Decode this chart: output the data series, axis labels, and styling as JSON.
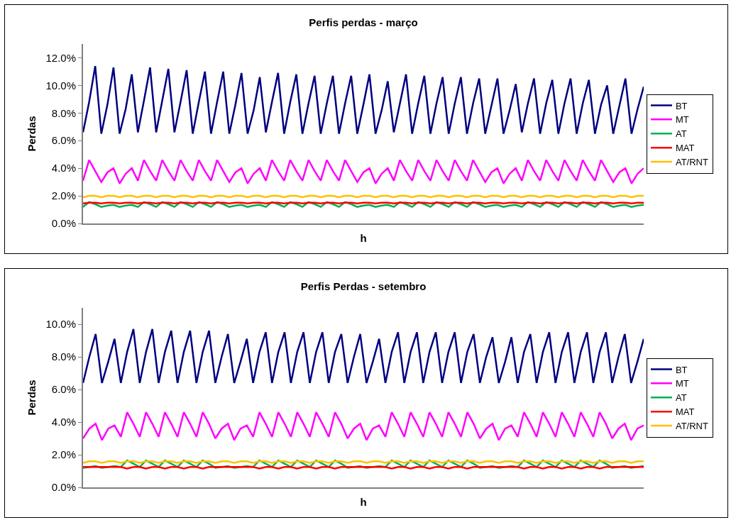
{
  "chart_data": [
    {
      "type": "line",
      "title": "Perfis perdas - março",
      "xlabel": "h",
      "ylabel": "Perdas",
      "legend": "right",
      "grid": false,
      "marker": "none",
      "line_style": "solid",
      "tick_labels": "y",
      "ylim": [
        0,
        13
      ],
      "yticks": [
        {
          "value": 0,
          "label": "0.0%"
        },
        {
          "value": 2,
          "label": "2.0%"
        },
        {
          "value": 4,
          "label": "4.0%"
        },
        {
          "value": 6,
          "label": "6.0%"
        },
        {
          "value": 8,
          "label": "8.0%"
        },
        {
          "value": 10,
          "label": "10.0%"
        },
        {
          "value": 12,
          "label": "12.0%"
        }
      ],
      "categories": [
        null,
        null,
        null,
        null,
        null,
        null,
        null,
        null,
        null,
        null,
        null,
        null,
        null,
        null,
        null,
        null,
        null,
        null,
        null,
        null,
        null,
        null,
        null,
        null,
        null,
        null,
        null,
        null,
        null,
        null,
        null,
        null,
        null,
        null,
        null,
        null,
        null,
        null,
        null,
        null,
        null,
        null,
        null,
        null,
        null,
        null,
        null,
        null,
        null,
        null,
        null,
        null,
        null,
        null,
        null,
        null,
        null,
        null,
        null,
        null,
        null,
        null,
        null,
        null,
        null,
        null,
        null,
        null,
        null,
        null,
        null,
        null,
        null,
        null,
        null,
        null,
        null,
        null,
        null,
        null,
        null,
        null,
        null,
        null,
        null,
        null,
        null,
        null,
        null,
        null,
        null,
        null,
        null
      ],
      "series": [
        {
          "name": "BT",
          "color": "#000080",
          "values": [
            6.6,
            8.8,
            11.4,
            6.5,
            8.6,
            11.3,
            6.5,
            8.3,
            10.8,
            6.6,
            8.9,
            11.3,
            6.6,
            8.9,
            11.2,
            6.6,
            8.8,
            11.1,
            6.5,
            8.8,
            11.0,
            6.5,
            8.8,
            11.0,
            6.5,
            8.6,
            10.9,
            6.5,
            8.2,
            10.6,
            6.6,
            8.8,
            10.9,
            6.5,
            8.8,
            10.8,
            6.5,
            8.7,
            10.7,
            6.5,
            8.7,
            10.7,
            6.5,
            8.7,
            10.7,
            6.5,
            8.6,
            10.8,
            6.5,
            8.2,
            10.3,
            6.6,
            8.7,
            10.8,
            6.5,
            8.7,
            10.7,
            6.5,
            8.7,
            10.6,
            6.5,
            8.7,
            10.6,
            6.5,
            8.7,
            10.5,
            6.5,
            8.5,
            10.5,
            6.5,
            8.2,
            10.1,
            6.6,
            8.7,
            10.5,
            6.5,
            8.7,
            10.4,
            6.5,
            8.7,
            10.5,
            6.5,
            8.7,
            10.4,
            6.5,
            8.6,
            10.0,
            6.5,
            8.5,
            10.5,
            6.5,
            8.3,
            9.9
          ]
        },
        {
          "name": "MT",
          "color": "#ff00ff",
          "values": [
            3.1,
            4.6,
            3.8,
            3.0,
            3.7,
            4.0,
            2.9,
            3.6,
            4.0,
            3.1,
            4.6,
            3.8,
            3.1,
            4.6,
            3.8,
            3.1,
            4.6,
            3.8,
            3.1,
            4.6,
            3.8,
            3.1,
            4.6,
            3.8,
            3.0,
            3.7,
            4.0,
            2.9,
            3.6,
            4.0,
            3.1,
            4.6,
            3.8,
            3.1,
            4.6,
            3.8,
            3.1,
            4.6,
            3.8,
            3.1,
            4.6,
            3.8,
            3.1,
            4.6,
            3.8,
            3.0,
            3.7,
            4.0,
            2.9,
            3.6,
            4.0,
            3.1,
            4.6,
            3.8,
            3.1,
            4.6,
            3.8,
            3.1,
            4.6,
            3.8,
            3.1,
            4.6,
            3.8,
            3.1,
            4.6,
            3.8,
            3.0,
            3.7,
            4.0,
            2.9,
            3.6,
            4.0,
            3.1,
            4.6,
            3.8,
            3.1,
            4.6,
            3.8,
            3.1,
            4.6,
            3.8,
            3.1,
            4.6,
            3.8,
            3.1,
            4.6,
            3.8,
            3.0,
            3.7,
            4.0,
            2.9,
            3.6,
            4.0
          ]
        },
        {
          "name": "AT",
          "color": "#00b050",
          "values": [
            1.2,
            1.55,
            1.4,
            1.2,
            1.3,
            1.35,
            1.2,
            1.3,
            1.35,
            1.2,
            1.55,
            1.4,
            1.2,
            1.55,
            1.4,
            1.2,
            1.55,
            1.4,
            1.2,
            1.55,
            1.4,
            1.2,
            1.55,
            1.4,
            1.2,
            1.3,
            1.35,
            1.2,
            1.3,
            1.35,
            1.2,
            1.55,
            1.4,
            1.2,
            1.55,
            1.4,
            1.2,
            1.55,
            1.4,
            1.2,
            1.55,
            1.4,
            1.2,
            1.55,
            1.4,
            1.2,
            1.3,
            1.35,
            1.2,
            1.3,
            1.35,
            1.2,
            1.55,
            1.4,
            1.2,
            1.55,
            1.4,
            1.2,
            1.55,
            1.4,
            1.2,
            1.55,
            1.4,
            1.2,
            1.55,
            1.4,
            1.2,
            1.3,
            1.35,
            1.2,
            1.3,
            1.35,
            1.2,
            1.55,
            1.4,
            1.2,
            1.55,
            1.4,
            1.2,
            1.55,
            1.4,
            1.2,
            1.55,
            1.4,
            1.2,
            1.55,
            1.4,
            1.2,
            1.3,
            1.35,
            1.2,
            1.3,
            1.35
          ]
        },
        {
          "name": "MAT",
          "color": "#ff0000",
          "values": [
            1.45,
            1.5,
            1.5,
            1.45,
            1.5,
            1.5,
            1.45,
            1.5,
            1.5,
            1.45,
            1.5,
            1.5,
            1.45,
            1.5,
            1.5,
            1.45,
            1.5,
            1.5,
            1.45,
            1.5,
            1.5,
            1.45,
            1.5,
            1.5,
            1.45,
            1.5,
            1.5,
            1.45,
            1.5,
            1.5,
            1.45,
            1.5,
            1.5,
            1.45,
            1.5,
            1.5,
            1.45,
            1.5,
            1.5,
            1.45,
            1.5,
            1.5,
            1.45,
            1.5,
            1.5,
            1.45,
            1.5,
            1.5,
            1.45,
            1.5,
            1.5,
            1.45,
            1.5,
            1.5,
            1.45,
            1.5,
            1.5,
            1.45,
            1.5,
            1.5,
            1.45,
            1.5,
            1.5,
            1.45,
            1.5,
            1.5,
            1.45,
            1.5,
            1.5,
            1.45,
            1.5,
            1.5,
            1.45,
            1.5,
            1.5,
            1.45,
            1.5,
            1.5,
            1.45,
            1.5,
            1.5,
            1.45,
            1.5,
            1.5,
            1.45,
            1.5,
            1.5,
            1.45,
            1.5,
            1.5,
            1.45,
            1.5,
            1.5
          ]
        },
        {
          "name": "AT/RNT",
          "color": "#ffc000",
          "values": [
            1.9,
            2.0,
            2.0,
            1.9,
            2.0,
            2.0,
            1.9,
            2.0,
            2.0,
            1.9,
            2.0,
            2.0,
            1.9,
            2.0,
            2.0,
            1.9,
            2.0,
            2.0,
            1.9,
            2.0,
            2.0,
            1.9,
            2.0,
            2.0,
            1.9,
            2.0,
            2.0,
            1.9,
            2.0,
            2.0,
            1.9,
            2.0,
            2.0,
            1.9,
            2.0,
            2.0,
            1.9,
            2.0,
            2.0,
            1.9,
            2.0,
            2.0,
            1.9,
            2.0,
            2.0,
            1.9,
            2.0,
            2.0,
            1.9,
            2.0,
            2.0,
            1.9,
            2.0,
            2.0,
            1.9,
            2.0,
            2.0,
            1.9,
            2.0,
            2.0,
            1.9,
            2.0,
            2.0,
            1.9,
            2.0,
            2.0,
            1.9,
            2.0,
            2.0,
            1.9,
            2.0,
            2.0,
            1.9,
            2.0,
            2.0,
            1.9,
            2.0,
            2.0,
            1.9,
            2.0,
            2.0,
            1.9,
            2.0,
            2.0,
            1.9,
            2.0,
            2.0,
            1.9,
            2.0,
            2.0,
            1.9,
            2.0,
            2.0
          ]
        }
      ]
    },
    {
      "type": "line",
      "title": "Perfis Perdas - setembro",
      "xlabel": "h",
      "ylabel": "Perdas",
      "legend": "right",
      "grid": false,
      "marker": "none",
      "line_style": "solid",
      "tick_labels": "y",
      "ylim": [
        0,
        11
      ],
      "yticks": [
        {
          "value": 0,
          "label": "0.0%"
        },
        {
          "value": 2,
          "label": "2.0%"
        },
        {
          "value": 4,
          "label": "4.0%"
        },
        {
          "value": 6,
          "label": "6.0%"
        },
        {
          "value": 8,
          "label": "8.0%"
        },
        {
          "value": 10,
          "label": "10.0%"
        }
      ],
      "categories": [
        null,
        null,
        null,
        null,
        null,
        null,
        null,
        null,
        null,
        null,
        null,
        null,
        null,
        null,
        null,
        null,
        null,
        null,
        null,
        null,
        null,
        null,
        null,
        null,
        null,
        null,
        null,
        null,
        null,
        null,
        null,
        null,
        null,
        null,
        null,
        null,
        null,
        null,
        null,
        null,
        null,
        null,
        null,
        null,
        null,
        null,
        null,
        null,
        null,
        null,
        null,
        null,
        null,
        null,
        null,
        null,
        null,
        null,
        null,
        null,
        null,
        null,
        null,
        null,
        null,
        null,
        null,
        null,
        null,
        null,
        null,
        null,
        null,
        null,
        null,
        null,
        null,
        null,
        null,
        null,
        null,
        null,
        null,
        null,
        null,
        null,
        null,
        null,
        null,
        null
      ],
      "series": [
        {
          "name": "BT",
          "color": "#000080",
          "values": [
            6.4,
            8.0,
            9.4,
            6.4,
            7.7,
            9.1,
            6.4,
            8.3,
            9.7,
            6.4,
            8.3,
            9.7,
            6.4,
            8.3,
            9.6,
            6.4,
            8.3,
            9.6,
            6.4,
            8.3,
            9.6,
            6.4,
            8.0,
            9.4,
            6.4,
            7.7,
            9.1,
            6.4,
            8.3,
            9.5,
            6.4,
            8.3,
            9.5,
            6.4,
            8.3,
            9.5,
            6.4,
            8.3,
            9.5,
            6.4,
            8.3,
            9.4,
            6.4,
            8.0,
            9.4,
            6.4,
            7.7,
            9.1,
            6.4,
            8.3,
            9.5,
            6.4,
            8.3,
            9.5,
            6.4,
            8.3,
            9.5,
            6.4,
            8.3,
            9.5,
            6.4,
            8.3,
            9.4,
            6.4,
            8.0,
            9.2,
            6.4,
            7.7,
            9.2,
            6.4,
            8.3,
            9.4,
            6.4,
            8.3,
            9.5,
            6.4,
            8.3,
            9.5,
            6.4,
            8.3,
            9.5,
            6.4,
            8.3,
            9.5,
            6.4,
            8.0,
            9.4,
            6.4,
            7.7,
            9.1
          ]
        },
        {
          "name": "MT",
          "color": "#ff00ff",
          "values": [
            3.0,
            3.6,
            3.9,
            2.9,
            3.6,
            3.8,
            3.1,
            4.6,
            3.9,
            3.1,
            4.6,
            3.9,
            3.1,
            4.6,
            3.9,
            3.1,
            4.6,
            3.9,
            3.1,
            4.6,
            3.9,
            3.0,
            3.6,
            3.9,
            2.9,
            3.6,
            3.8,
            3.1,
            4.6,
            3.9,
            3.1,
            4.6,
            3.9,
            3.1,
            4.6,
            3.9,
            3.1,
            4.6,
            3.9,
            3.1,
            4.6,
            3.9,
            3.0,
            3.6,
            3.9,
            2.9,
            3.6,
            3.8,
            3.1,
            4.6,
            3.9,
            3.1,
            4.6,
            3.9,
            3.1,
            4.6,
            3.9,
            3.1,
            4.6,
            3.9,
            3.1,
            4.6,
            3.9,
            3.0,
            3.6,
            3.9,
            2.9,
            3.6,
            3.8,
            3.1,
            4.6,
            3.9,
            3.1,
            4.6,
            3.9,
            3.1,
            4.6,
            3.9,
            3.1,
            4.6,
            3.9,
            3.1,
            4.6,
            3.9,
            3.0,
            3.6,
            3.9,
            2.9,
            3.6,
            3.8
          ]
        },
        {
          "name": "AT",
          "color": "#00b050",
          "values": [
            1.2,
            1.25,
            1.3,
            1.2,
            1.25,
            1.3,
            1.25,
            1.65,
            1.45,
            1.25,
            1.65,
            1.45,
            1.25,
            1.65,
            1.45,
            1.25,
            1.65,
            1.45,
            1.25,
            1.65,
            1.45,
            1.2,
            1.25,
            1.3,
            1.2,
            1.25,
            1.3,
            1.25,
            1.65,
            1.45,
            1.25,
            1.65,
            1.45,
            1.25,
            1.65,
            1.45,
            1.25,
            1.65,
            1.45,
            1.25,
            1.65,
            1.45,
            1.2,
            1.25,
            1.3,
            1.2,
            1.25,
            1.3,
            1.25,
            1.65,
            1.45,
            1.25,
            1.65,
            1.45,
            1.25,
            1.65,
            1.45,
            1.25,
            1.65,
            1.45,
            1.25,
            1.65,
            1.45,
            1.2,
            1.25,
            1.3,
            1.2,
            1.25,
            1.3,
            1.25,
            1.65,
            1.45,
            1.25,
            1.65,
            1.45,
            1.25,
            1.65,
            1.45,
            1.25,
            1.65,
            1.45,
            1.25,
            1.65,
            1.45,
            1.2,
            1.25,
            1.3,
            1.2,
            1.25,
            1.3
          ]
        },
        {
          "name": "MAT",
          "color": "#ff0000",
          "values": [
            1.25,
            1.25,
            1.25,
            1.25,
            1.25,
            1.25,
            1.25,
            1.15,
            1.25,
            1.25,
            1.15,
            1.25,
            1.25,
            1.15,
            1.25,
            1.25,
            1.15,
            1.25,
            1.25,
            1.15,
            1.25,
            1.25,
            1.25,
            1.25,
            1.25,
            1.25,
            1.25,
            1.25,
            1.15,
            1.25,
            1.25,
            1.15,
            1.25,
            1.25,
            1.15,
            1.25,
            1.25,
            1.15,
            1.25,
            1.25,
            1.15,
            1.25,
            1.25,
            1.25,
            1.25,
            1.25,
            1.25,
            1.25,
            1.25,
            1.15,
            1.25,
            1.25,
            1.15,
            1.25,
            1.25,
            1.15,
            1.25,
            1.25,
            1.15,
            1.25,
            1.25,
            1.15,
            1.25,
            1.25,
            1.25,
            1.25,
            1.25,
            1.25,
            1.25,
            1.25,
            1.15,
            1.25,
            1.25,
            1.15,
            1.25,
            1.25,
            1.15,
            1.25,
            1.25,
            1.15,
            1.25,
            1.25,
            1.15,
            1.25,
            1.25,
            1.25,
            1.25,
            1.25,
            1.25,
            1.25
          ]
        },
        {
          "name": "AT/RNT",
          "color": "#ffc000",
          "values": [
            1.5,
            1.6,
            1.6,
            1.5,
            1.6,
            1.6,
            1.5,
            1.6,
            1.6,
            1.5,
            1.6,
            1.6,
            1.5,
            1.6,
            1.6,
            1.5,
            1.6,
            1.6,
            1.5,
            1.6,
            1.6,
            1.5,
            1.6,
            1.6,
            1.5,
            1.6,
            1.6,
            1.5,
            1.6,
            1.6,
            1.5,
            1.6,
            1.6,
            1.5,
            1.6,
            1.6,
            1.5,
            1.6,
            1.6,
            1.5,
            1.6,
            1.6,
            1.5,
            1.6,
            1.6,
            1.5,
            1.6,
            1.6,
            1.5,
            1.6,
            1.6,
            1.5,
            1.6,
            1.6,
            1.5,
            1.6,
            1.6,
            1.5,
            1.6,
            1.6,
            1.5,
            1.6,
            1.6,
            1.5,
            1.6,
            1.6,
            1.5,
            1.6,
            1.6,
            1.5,
            1.6,
            1.6,
            1.5,
            1.6,
            1.6,
            1.5,
            1.6,
            1.6,
            1.5,
            1.6,
            1.6,
            1.5,
            1.6,
            1.6,
            1.5,
            1.6,
            1.6,
            1.5,
            1.6,
            1.6
          ]
        }
      ]
    }
  ]
}
